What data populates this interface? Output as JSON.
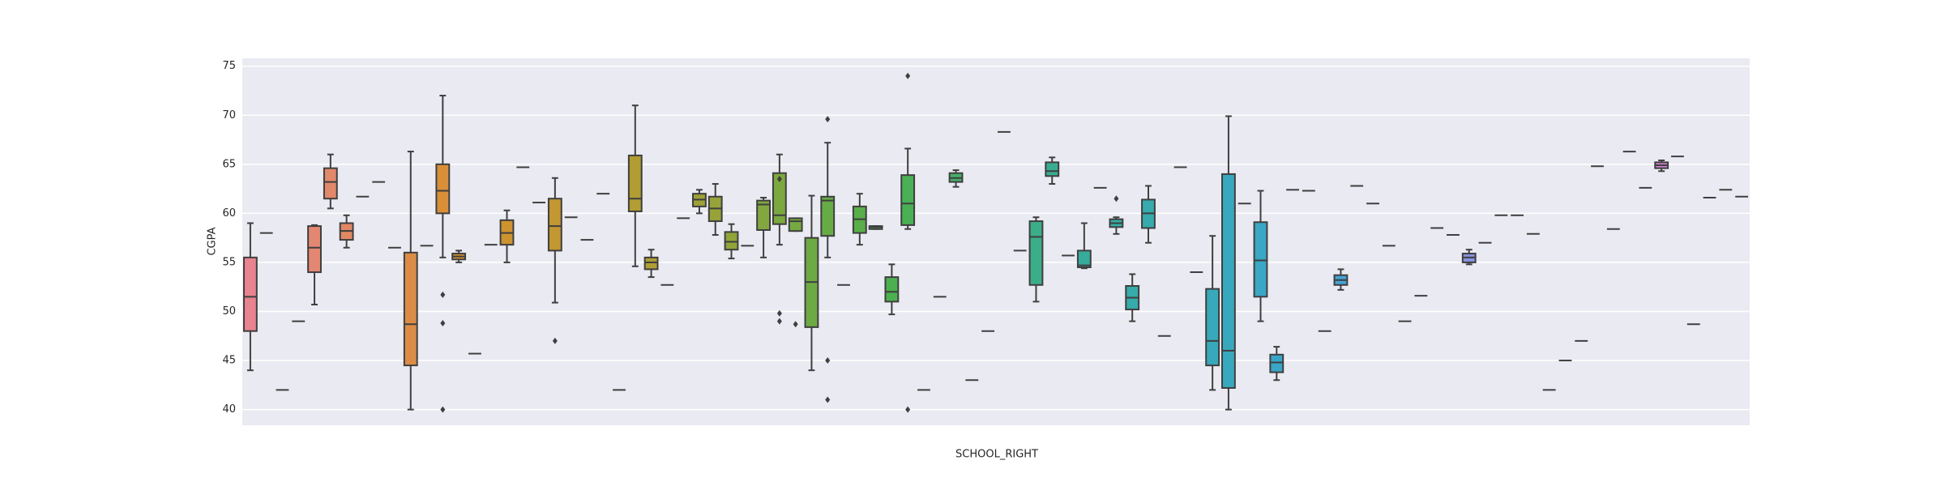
{
  "chart_data": {
    "type": "box",
    "xlabel": "SCHOOL_RIGHT",
    "ylabel": "CGPA",
    "ylim": [
      38.4,
      75.8
    ],
    "yticks": [
      40,
      45,
      50,
      55,
      60,
      65,
      70,
      75
    ],
    "grid": true,
    "palette": [
      "#e8838f",
      "#d7902f",
      "#a8a033",
      "#4cb04e",
      "#35aca4",
      "#3aa5d0",
      "#a28ce6",
      "#e97ac8"
    ],
    "categories": [
      null,
      null,
      null,
      null,
      null,
      null,
      null,
      null,
      null,
      null,
      null,
      null,
      null,
      null,
      null,
      null,
      null,
      null,
      null,
      null,
      null,
      null,
      null,
      null,
      null,
      null,
      null,
      null,
      null,
      null,
      null,
      null,
      null,
      null,
      null,
      null,
      null,
      null,
      null,
      null,
      null,
      null,
      null,
      null,
      null,
      null,
      null,
      null,
      null,
      null,
      null,
      null,
      null,
      null,
      null,
      null,
      null,
      null,
      null,
      null,
      null,
      null,
      null,
      null,
      null,
      null,
      null,
      null,
      null,
      null,
      null,
      null,
      null,
      null,
      null,
      null,
      null,
      null,
      null,
      null,
      null,
      null,
      null,
      null,
      null,
      null,
      null,
      null,
      null,
      null,
      null,
      null,
      null,
      null
    ],
    "boxes": [
      {
        "min": 44,
        "q1": 48,
        "median": 51.5,
        "q3": 55.5,
        "max": 59
      },
      {
        "median": 58
      },
      {
        "median": 42
      },
      {
        "median": 49
      },
      {
        "min": 50.7,
        "q1": 54,
        "median": 56.5,
        "q3": 58.7,
        "max": 58.8
      },
      {
        "min": 60.5,
        "q1": 61.5,
        "median": 63.2,
        "q3": 64.6,
        "max": 66
      },
      {
        "min": 56.5,
        "q1": 57.3,
        "median": 58.2,
        "q3": 59,
        "max": 59.8
      },
      {
        "median": 61.7
      },
      {
        "median": 63.2
      },
      {
        "median": 56.5
      },
      {
        "min": 40,
        "q1": 44.5,
        "median": 48.7,
        "q3": 56,
        "max": 66.3
      },
      {
        "median": 56.7
      },
      {
        "min": 55.5,
        "q1": 60,
        "median": 62.3,
        "q3": 65,
        "max": 72,
        "outliers": [
          51.7,
          48.8,
          40
        ]
      },
      {
        "min": 55,
        "q1": 55.3,
        "median": 55.6,
        "q3": 55.9,
        "max": 56.2
      },
      {
        "median": 45.7
      },
      {
        "median": 56.8
      },
      {
        "min": 55,
        "q1": 56.8,
        "median": 58,
        "q3": 59.3,
        "max": 60.3
      },
      {
        "median": 64.7
      },
      {
        "median": 61.1
      },
      {
        "min": 50.9,
        "q1": 56.2,
        "median": 58.7,
        "q3": 61.5,
        "max": 63.6,
        "outliers": [
          47
        ]
      },
      {
        "median": 59.6
      },
      {
        "median": 57.3
      },
      {
        "median": 62
      },
      {
        "median": 42
      },
      {
        "min": 54.6,
        "q1": 60.2,
        "median": 61.5,
        "q3": 65.9,
        "max": 71
      },
      {
        "min": 53.5,
        "q1": 54.3,
        "median": 55,
        "q3": 55.5,
        "max": 56.3
      },
      {
        "median": 52.7
      },
      {
        "median": 59.5
      },
      {
        "min": 60,
        "q1": 60.7,
        "median": 61.4,
        "q3": 62,
        "max": 62.4
      },
      {
        "min": 57.8,
        "q1": 59.2,
        "median": 60.5,
        "q3": 61.7,
        "max": 63
      },
      {
        "min": 55.4,
        "q1": 56.3,
        "median": 57.1,
        "q3": 58.1,
        "max": 58.9
      },
      {
        "median": 56.7
      },
      {
        "min": 55.5,
        "q1": 58.3,
        "median": 60.9,
        "q3": 61.3,
        "max": 61.6
      },
      {
        "min": 56.8,
        "q1": 58.9,
        "median": 59.8,
        "q3": 64.1,
        "max": 66,
        "outliers": [
          63.5,
          49.8,
          49
        ]
      },
      {
        "min": 58.2,
        "q1": 58.2,
        "median": 59.2,
        "q3": 59.5,
        "max": 59.5,
        "outliers": [
          48.7
        ]
      },
      {
        "min": 44,
        "q1": 48.4,
        "median": 53,
        "q3": 57.5,
        "max": 61.8
      },
      {
        "min": 55.5,
        "q1": 57.7,
        "median": 61.3,
        "q3": 61.7,
        "max": 67.2,
        "outliers": [
          69.6,
          45,
          41
        ]
      },
      {
        "median": 52.7
      },
      {
        "min": 56.8,
        "q1": 58,
        "median": 59.4,
        "q3": 60.7,
        "max": 62
      },
      {
        "min": 58.4,
        "q1": 58.4,
        "median": 58.6,
        "q3": 58.7,
        "max": 58.7
      },
      {
        "min": 49.7,
        "q1": 51,
        "median": 52,
        "q3": 53.5,
        "max": 54.8
      },
      {
        "min": 58.4,
        "q1": 58.8,
        "median": 61,
        "q3": 63.9,
        "max": 66.6,
        "outliers": [
          74,
          40
        ]
      },
      {
        "median": 42
      },
      {
        "median": 51.5
      },
      {
        "min": 62.7,
        "q1": 63.2,
        "median": 63.6,
        "q3": 64.1,
        "max": 64.4
      },
      {
        "median": 43
      },
      {
        "median": 48
      },
      {
        "median": 68.3
      },
      {
        "median": 56.2
      },
      {
        "min": 51,
        "q1": 52.7,
        "median": 57.6,
        "q3": 59.2,
        "max": 59.6
      },
      {
        "min": 63,
        "q1": 63.8,
        "median": 64.3,
        "q3": 65.2,
        "max": 65.7
      },
      {
        "median": 55.7
      },
      {
        "min": 54.4,
        "q1": 54.5,
        "median": 54.7,
        "q3": 56.2,
        "max": 59
      },
      {
        "median": 62.6
      },
      {
        "min": 57.9,
        "q1": 58.6,
        "median": 59,
        "q3": 59.4,
        "max": 59.6,
        "outliers": [
          61.5
        ]
      },
      {
        "min": 49,
        "q1": 50.2,
        "median": 51.4,
        "q3": 52.6,
        "max": 53.8
      },
      {
        "min": 57,
        "q1": 58.5,
        "median": 60,
        "q3": 61.4,
        "max": 62.8
      },
      {
        "median": 47.5
      },
      {
        "median": 64.7
      },
      {
        "median": 54
      },
      {
        "min": 42,
        "q1": 44.5,
        "median": 47,
        "q3": 52.3,
        "max": 57.7
      },
      {
        "min": 40,
        "q1": 42.2,
        "median": 46,
        "q3": 64,
        "max": 69.9
      },
      {
        "median": 61
      },
      {
        "min": 49,
        "q1": 51.5,
        "median": 55.2,
        "q3": 59.1,
        "max": 62.3
      },
      {
        "min": 43,
        "q1": 43.8,
        "median": 44.8,
        "q3": 45.6,
        "max": 46.4
      },
      {
        "median": 62.4
      },
      {
        "median": 62.3
      },
      {
        "median": 48
      },
      {
        "min": 52.2,
        "q1": 52.7,
        "median": 53.2,
        "q3": 53.7,
        "max": 54.3
      },
      {
        "median": 62.8
      },
      {
        "median": 61
      },
      {
        "median": 56.7
      },
      {
        "median": 49
      },
      {
        "median": 51.6
      },
      {
        "median": 58.5
      },
      {
        "median": 57.8
      },
      {
        "min": 54.8,
        "q1": 55,
        "median": 55.5,
        "q3": 55.9,
        "max": 56.3
      },
      {
        "median": 57
      },
      {
        "median": 59.8
      },
      {
        "median": 59.8
      },
      {
        "median": 57.9
      },
      {
        "median": 42
      },
      {
        "median": 45
      },
      {
        "median": 47
      },
      {
        "median": 64.8
      },
      {
        "median": 58.4
      },
      {
        "median": 66.3
      },
      {
        "median": 62.6
      },
      {
        "min": 64.3,
        "q1": 64.6,
        "median": 64.9,
        "q3": 65.2,
        "max": 65.4
      },
      {
        "median": 65.8
      },
      {
        "median": 48.7
      },
      {
        "median": 61.6
      },
      {
        "median": 62.4
      },
      {
        "median": 61.7
      }
    ]
  }
}
